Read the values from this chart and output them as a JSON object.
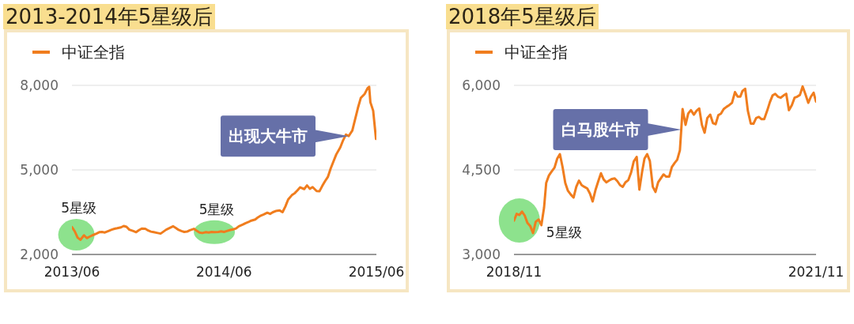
{
  "chart_data": [
    {
      "type": "line",
      "title": "2013-2014年5星级后",
      "x": [
        "2013-06-01",
        "2013-06-08",
        "2013-06-15",
        "2013-06-22",
        "2013-07-01",
        "2013-07-08",
        "2013-07-15",
        "2013-07-22",
        "2013-08-01",
        "2013-08-08",
        "2013-08-15",
        "2013-08-22",
        "2013-09-01",
        "2013-09-08",
        "2013-09-15",
        "2013-09-22",
        "2013-10-01",
        "2013-10-08",
        "2013-10-15",
        "2013-10-22",
        "2013-11-01",
        "2013-11-08",
        "2013-11-15",
        "2013-11-22",
        "2013-12-01",
        "2013-12-08",
        "2013-12-15",
        "2013-12-22",
        "2014-01-01",
        "2014-01-08",
        "2014-01-15",
        "2014-01-22",
        "2014-02-01",
        "2014-02-08",
        "2014-02-15",
        "2014-02-22",
        "2014-03-01",
        "2014-03-08",
        "2014-03-15",
        "2014-03-22",
        "2014-04-01",
        "2014-04-08",
        "2014-04-15",
        "2014-04-22",
        "2014-05-01",
        "2014-05-08",
        "2014-05-15",
        "2014-05-22",
        "2014-06-01",
        "2014-06-08",
        "2014-06-15",
        "2014-06-22",
        "2014-07-01",
        "2014-07-08",
        "2014-07-15",
        "2014-07-22",
        "2014-08-01",
        "2014-08-08",
        "2014-08-15",
        "2014-08-22",
        "2014-09-01",
        "2014-09-08",
        "2014-09-15",
        "2014-09-22",
        "2014-10-01",
        "2014-10-08",
        "2014-10-15",
        "2014-10-22",
        "2014-11-01",
        "2014-11-08",
        "2014-11-15",
        "2014-11-22",
        "2014-12-01",
        "2014-12-08",
        "2014-12-15",
        "2014-12-22",
        "2015-01-01",
        "2015-01-08",
        "2015-01-15",
        "2015-01-22",
        "2015-02-01",
        "2015-02-08",
        "2015-02-15",
        "2015-02-22",
        "2015-03-01",
        "2015-03-08",
        "2015-03-15",
        "2015-03-22",
        "2015-04-01",
        "2015-04-08",
        "2015-04-15",
        "2015-04-22",
        "2015-05-01",
        "2015-05-08",
        "2015-05-15",
        "2015-05-22",
        "2015-06-01",
        "2015-06-08",
        "2015-06-12",
        "2015-06-15",
        "2015-06-22",
        "2015-06-29"
      ],
      "series": [
        {
          "name": "中证全指",
          "color": "#f07d1e",
          "values": [
            2970,
            2820,
            2600,
            2520,
            2680,
            2580,
            2630,
            2680,
            2740,
            2790,
            2800,
            2780,
            2840,
            2880,
            2910,
            2930,
            2960,
            3010,
            2980,
            2880,
            2830,
            2790,
            2860,
            2920,
            2910,
            2850,
            2810,
            2790,
            2760,
            2740,
            2810,
            2880,
            2950,
            3000,
            2940,
            2870,
            2830,
            2800,
            2810,
            2860,
            2910,
            2840,
            2780,
            2760,
            2790,
            2780,
            2800,
            2790,
            2800,
            2820,
            2800,
            2830,
            2870,
            2890,
            2920,
            3000,
            3060,
            3110,
            3150,
            3200,
            3240,
            3320,
            3380,
            3420,
            3480,
            3440,
            3500,
            3540,
            3560,
            3500,
            3700,
            3950,
            4100,
            4170,
            4270,
            4380,
            4320,
            4450,
            4330,
            4390,
            4250,
            4240,
            4430,
            4600,
            4750,
            5050,
            5300,
            5550,
            5800,
            6050,
            6250,
            6200,
            6400,
            6800,
            7200,
            7550,
            7700,
            7900,
            7950,
            7400,
            7100,
            6100
          ]
        }
      ],
      "xlim": [
        "2013-06-01",
        "2015-06-30"
      ],
      "xticks": [
        {
          "value": "2013-06-01",
          "label": "2013/06"
        },
        {
          "value": "2014-06-15",
          "label": "2014/06"
        },
        {
          "value": "2015-06-30",
          "label": "2015/06"
        }
      ],
      "ylim": [
        2000,
        8000
      ],
      "yticks": [
        {
          "value": 2000,
          "label": "2,000"
        },
        {
          "value": 5000,
          "label": "5,000"
        },
        {
          "value": 8000,
          "label": "8,000"
        }
      ],
      "grid": "y",
      "legend": "top left",
      "annotations": [
        {
          "text": "5星级",
          "x": "2013-06-12",
          "y": 2700
        },
        {
          "text": "5星级",
          "x": "2014-05-22",
          "y": 2790
        },
        {
          "text": "出现大牛市",
          "x": "2015-04-22",
          "y": 6200
        }
      ]
    },
    {
      "type": "line",
      "title": "2018年5星级后",
      "x": [
        "2018-11-01",
        "2018-11-11",
        "2018-11-21",
        "2018-12-01",
        "2018-12-11",
        "2018-12-21",
        "2019-01-01",
        "2019-01-11",
        "2019-01-21",
        "2019-02-01",
        "2019-02-11",
        "2019-02-21",
        "2019-03-01",
        "2019-03-11",
        "2019-03-21",
        "2019-04-01",
        "2019-04-11",
        "2019-04-21",
        "2019-05-01",
        "2019-05-11",
        "2019-05-21",
        "2019-06-01",
        "2019-06-11",
        "2019-06-21",
        "2019-07-01",
        "2019-07-11",
        "2019-07-21",
        "2019-08-01",
        "2019-08-11",
        "2019-08-21",
        "2019-09-01",
        "2019-09-11",
        "2019-09-21",
        "2019-10-01",
        "2019-10-11",
        "2019-10-21",
        "2019-11-01",
        "2019-11-11",
        "2019-11-21",
        "2019-12-01",
        "2019-12-11",
        "2019-12-21",
        "2020-01-01",
        "2020-01-11",
        "2020-01-21",
        "2020-02-01",
        "2020-02-11",
        "2020-02-21",
        "2020-03-01",
        "2020-03-11",
        "2020-03-21",
        "2020-04-01",
        "2020-04-11",
        "2020-04-21",
        "2020-05-01",
        "2020-05-11",
        "2020-05-21",
        "2020-06-01",
        "2020-06-11",
        "2020-06-21",
        "2020-07-01",
        "2020-07-11",
        "2020-07-21",
        "2020-08-01",
        "2020-08-11",
        "2020-08-21",
        "2020-09-01",
        "2020-09-11",
        "2020-09-21",
        "2020-10-01",
        "2020-10-11",
        "2020-10-21",
        "2020-11-01",
        "2020-11-11",
        "2020-11-21",
        "2020-12-01",
        "2020-12-11",
        "2020-12-21",
        "2021-01-01",
        "2021-01-11",
        "2021-01-21",
        "2021-02-01",
        "2021-02-11",
        "2021-02-21",
        "2021-03-01",
        "2021-03-11",
        "2021-03-21",
        "2021-04-01",
        "2021-04-11",
        "2021-04-21",
        "2021-05-01",
        "2021-05-11",
        "2021-05-21",
        "2021-06-01",
        "2021-06-11",
        "2021-06-21",
        "2021-07-01",
        "2021-07-11",
        "2021-07-21",
        "2021-08-01",
        "2021-08-11",
        "2021-08-21",
        "2021-09-01",
        "2021-09-11",
        "2021-09-21",
        "2021-10-01",
        "2021-10-11",
        "2021-10-21",
        "2021-11-01",
        "2021-11-11",
        "2021-11-21",
        "2021-11-30"
      ],
      "series": [
        {
          "name": "中证全指",
          "color": "#f07d1e",
          "values": [
            3600,
            3720,
            3700,
            3760,
            3690,
            3560,
            3500,
            3380,
            3580,
            3620,
            3520,
            3830,
            4270,
            4400,
            4470,
            4540,
            4700,
            4780,
            4550,
            4270,
            4130,
            4060,
            4010,
            4200,
            4310,
            4230,
            4200,
            4170,
            4080,
            3940,
            4150,
            4300,
            4440,
            4330,
            4280,
            4310,
            4340,
            4350,
            4300,
            4230,
            4200,
            4280,
            4320,
            4450,
            4650,
            4730,
            4150,
            4460,
            4700,
            4780,
            4660,
            4200,
            4110,
            4280,
            4350,
            4420,
            4380,
            4380,
            4550,
            4620,
            4680,
            4850,
            5580,
            5300,
            5500,
            5560,
            5480,
            5550,
            5590,
            5300,
            5160,
            5420,
            5480,
            5330,
            5310,
            5470,
            5500,
            5580,
            5620,
            5650,
            5690,
            5880,
            5800,
            5800,
            5900,
            5940,
            5550,
            5320,
            5320,
            5420,
            5440,
            5400,
            5400,
            5550,
            5700,
            5820,
            5850,
            5800,
            5780,
            5820,
            5850,
            5560,
            5650,
            5780,
            5800,
            5830,
            5980,
            5850,
            5690,
            5800,
            5870,
            5710
          ]
        }
      ],
      "xlim": [
        "2018-11-01",
        "2021-11-30"
      ],
      "xticks": [
        {
          "value": "2018-11-01",
          "label": "2018/11"
        },
        {
          "value": "2021-11-30",
          "label": "2021/11"
        }
      ],
      "ylim": [
        3000,
        6000
      ],
      "yticks": [
        {
          "value": 3000,
          "label": "3,000"
        },
        {
          "value": 4500,
          "label": "4,500"
        },
        {
          "value": 6000,
          "label": "6,000"
        }
      ],
      "grid": "y",
      "legend": "top left",
      "annotations": [
        {
          "text": "5星级",
          "x": "2018-11-21",
          "y": 3700
        },
        {
          "text": "白马股牛市",
          "x": "2020-07-16",
          "y": 5215
        }
      ]
    }
  ]
}
